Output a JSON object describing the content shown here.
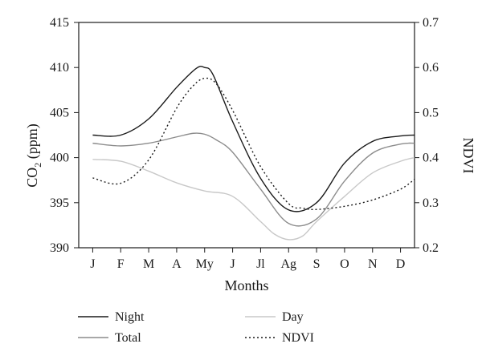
{
  "chart_data": {
    "type": "line",
    "xlabel": "Months",
    "ylabel_left": "CO2 (ppm)",
    "ylabel_left_parts": {
      "base": "CO",
      "sub": "2",
      "rest": " (ppm)"
    },
    "ylabel_right": "NDVI",
    "ylim_left": [
      390,
      415
    ],
    "ylim_right": [
      0.2,
      0.7
    ],
    "yticks_left": [
      "390",
      "395",
      "400",
      "405",
      "410",
      "415"
    ],
    "yticks_right": [
      "0.2",
      "0.3",
      "0.4",
      "0.5",
      "0.6",
      "0.7"
    ],
    "categories": [
      "J",
      "F",
      "M",
      "A",
      "My",
      "J",
      "Jl",
      "Ag",
      "S",
      "O",
      "N",
      "D"
    ],
    "series": [
      {
        "name": "Night",
        "axis": "left",
        "color": "#1a1a1a",
        "dash": "",
        "x": [
          0.0,
          1.0,
          2.0,
          3.0,
          3.7,
          4.0,
          4.3,
          5.0,
          6.0,
          7.0,
          8.0,
          9.0,
          10.0,
          11.0,
          11.5
        ],
        "y": [
          402.5,
          402.5,
          404.3,
          407.8,
          409.9,
          410.0,
          409.2,
          404.0,
          397.7,
          394.2,
          395.0,
          399.4,
          401.8,
          402.4,
          402.5
        ]
      },
      {
        "name": "Total",
        "axis": "left",
        "color": "#8c8c8c",
        "dash": "",
        "x": [
          0.0,
          1.0,
          2.0,
          3.0,
          3.6,
          4.0,
          4.4,
          5.0,
          6.0,
          7.0,
          8.0,
          9.0,
          10.0,
          11.0,
          11.5
        ],
        "y": [
          401.6,
          401.3,
          401.6,
          402.3,
          402.7,
          402.6,
          402.0,
          400.6,
          396.5,
          392.7,
          393.2,
          397.4,
          400.5,
          401.5,
          401.6
        ]
      },
      {
        "name": "Day",
        "axis": "left",
        "color": "#c8c8c8",
        "dash": "",
        "x": [
          0.0,
          1.0,
          2.0,
          3.0,
          4.0,
          5.0,
          6.0,
          6.5,
          7.0,
          7.5,
          8.0,
          9.0,
          10.0,
          11.0,
          11.5
        ],
        "y": [
          399.8,
          399.6,
          398.5,
          397.2,
          396.3,
          395.7,
          392.9,
          391.5,
          390.9,
          391.3,
          392.9,
          395.7,
          398.3,
          399.6,
          400.0
        ]
      },
      {
        "name": "NDVI",
        "axis": "right",
        "color": "#1a1a1a",
        "dash": "2,3",
        "x": [
          0.0,
          1.0,
          2.0,
          3.0,
          3.6,
          4.0,
          4.4,
          5.0,
          6.0,
          7.0,
          7.5,
          8.0,
          9.0,
          10.0,
          11.0,
          11.5
        ],
        "y": [
          0.355,
          0.343,
          0.395,
          0.51,
          0.56,
          0.576,
          0.565,
          0.505,
          0.38,
          0.298,
          0.288,
          0.285,
          0.292,
          0.306,
          0.33,
          0.352
        ]
      }
    ],
    "legend_position": "bottom"
  }
}
